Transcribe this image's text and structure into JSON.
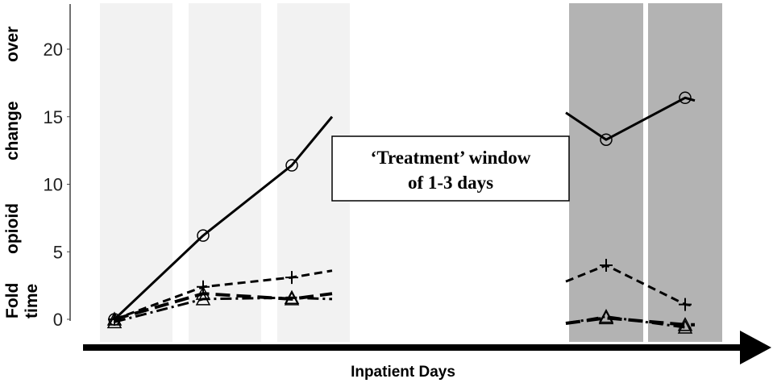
{
  "chart_data": {
    "type": "line",
    "xlabel": "Inpatient Days",
    "ylabel": "Fold opioid change over time",
    "ylabel_words": [
      "Fold",
      "opioid",
      "change",
      "over"
    ],
    "ylabel_last": "time",
    "yticks": [
      0,
      5,
      10,
      15,
      20
    ],
    "ylim": [
      -1.5,
      23.5
    ],
    "grid": false,
    "annotation": [
      "‘Treatment’ window",
      "of 1-3 days"
    ],
    "shaded_days_light": [
      1,
      2,
      3
    ],
    "shaded_days_dark": [
      6,
      7
    ],
    "series": [
      {
        "marker": "circle",
        "style": "solid",
        "segments": [
          {
            "x": [
              1,
              2,
              3,
              3.5
            ],
            "y": [
              0,
              6.2,
              11.4,
              15
            ]
          },
          {
            "x": [
              5.5,
              6,
              7,
              7.1
            ],
            "y": [
              15.3,
              13.3,
              16.4,
              16.2
            ]
          }
        ]
      },
      {
        "marker": "plus",
        "style": "dashed",
        "segments": [
          {
            "x": [
              1,
              2,
              3,
              3.5
            ],
            "y": [
              0,
              2.4,
              3.1,
              3.6
            ]
          },
          {
            "x": [
              5.5,
              6,
              7,
              7.1
            ],
            "y": [
              2.8,
              4.0,
              1.1,
              1.0
            ]
          }
        ]
      },
      {
        "marker": "triangle",
        "style": "longdash",
        "segments": [
          {
            "x": [
              1,
              2,
              3,
              3.5
            ],
            "y": [
              0,
              1.9,
              1.5,
              1.9
            ]
          },
          {
            "x": [
              5.5,
              6,
              7,
              7.1
            ],
            "y": [
              -0.3,
              0.1,
              -0.4,
              -0.4
            ]
          }
        ]
      },
      {
        "marker": "triangle",
        "style": "dashdot",
        "segments": [
          {
            "x": [
              1,
              2,
              3,
              3.5
            ],
            "y": [
              -0.2,
              1.5,
              1.6,
              1.5
            ]
          },
          {
            "x": [
              5.5,
              6,
              7,
              7.1
            ],
            "y": [
              -0.3,
              0.2,
              -0.6,
              -0.7
            ]
          }
        ]
      }
    ]
  }
}
